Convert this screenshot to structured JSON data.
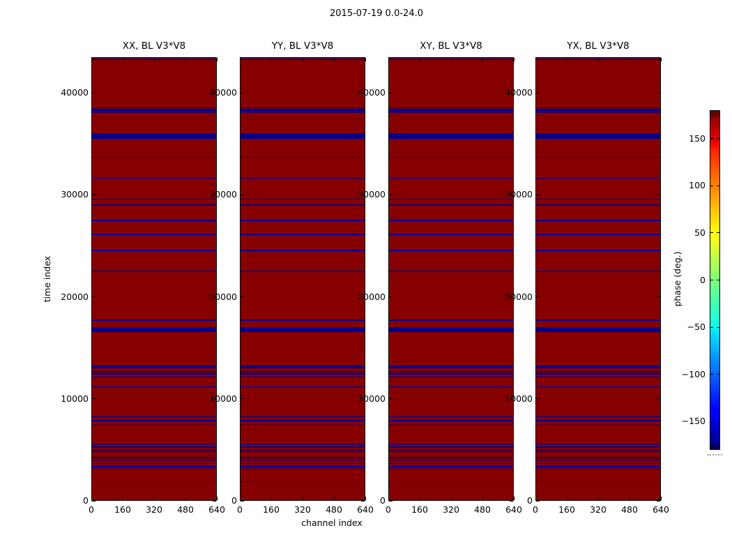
{
  "figure": {
    "title": "2015-07-19 0.0-24.0"
  },
  "chart_data": {
    "type": "heatmap",
    "title": "2015-07-19 0.0-24.0",
    "xlabel": "channel index",
    "ylabel": "time index",
    "panels": [
      {
        "title": "XX, BL V3*V8"
      },
      {
        "title": "YY, BL V3*V8"
      },
      {
        "title": "XY, BL V3*V8"
      },
      {
        "title": "YX, BL V3*V8"
      }
    ],
    "xlim": [
      0,
      640
    ],
    "ylim": [
      0,
      43500
    ],
    "x_ticks": [
      0,
      160,
      320,
      480,
      640
    ],
    "x_tick_labels": [
      "0",
      "160",
      "320",
      "480",
      "640"
    ],
    "y_ticks": [
      0,
      10000,
      20000,
      30000,
      40000
    ],
    "y_tick_labels": [
      "0",
      "10000",
      "20000",
      "30000",
      "40000"
    ],
    "grid": false,
    "background_value_deg": 180,
    "background_color": "#870000",
    "stripe_value_deg": -180,
    "stripe_color": "#000090",
    "stripes_note": "each stripe = [time_index_center, thickness_in_time_units]; identical in all 4 panels",
    "stripes": [
      [
        43360,
        140
      ],
      [
        38600,
        110
      ],
      [
        38450,
        110
      ],
      [
        38290,
        110
      ],
      [
        38130,
        110
      ],
      [
        35830,
        560
      ],
      [
        33740,
        110
      ],
      [
        31690,
        110
      ],
      [
        29640,
        110
      ],
      [
        29070,
        110
      ],
      [
        27560,
        110
      ],
      [
        26200,
        110
      ],
      [
        24620,
        110
      ],
      [
        22570,
        110
      ],
      [
        17780,
        110
      ],
      [
        16860,
        480
      ],
      [
        13220,
        290
      ],
      [
        12740,
        110
      ],
      [
        12520,
        110
      ],
      [
        12220,
        110
      ],
      [
        11260,
        110
      ],
      [
        8300,
        110
      ],
      [
        7950,
        110
      ],
      [
        7500,
        110
      ],
      [
        5560,
        110
      ],
      [
        5330,
        110
      ],
      [
        5060,
        110
      ],
      [
        4880,
        110
      ],
      [
        4310,
        110
      ],
      [
        4080,
        110
      ],
      [
        3740,
        110
      ],
      [
        3400,
        110
      ],
      [
        3170,
        110
      ],
      [
        1960,
        110
      ]
    ],
    "colorbar": {
      "label": "phase (deg.)",
      "colormap": "jet",
      "range": [
        -180,
        180
      ],
      "ticks": [
        150,
        100,
        50,
        0,
        -50,
        -100,
        -150
      ],
      "tick_labels": [
        "150",
        "100",
        "50",
        "0",
        "−50",
        "−100",
        "−150"
      ]
    }
  }
}
